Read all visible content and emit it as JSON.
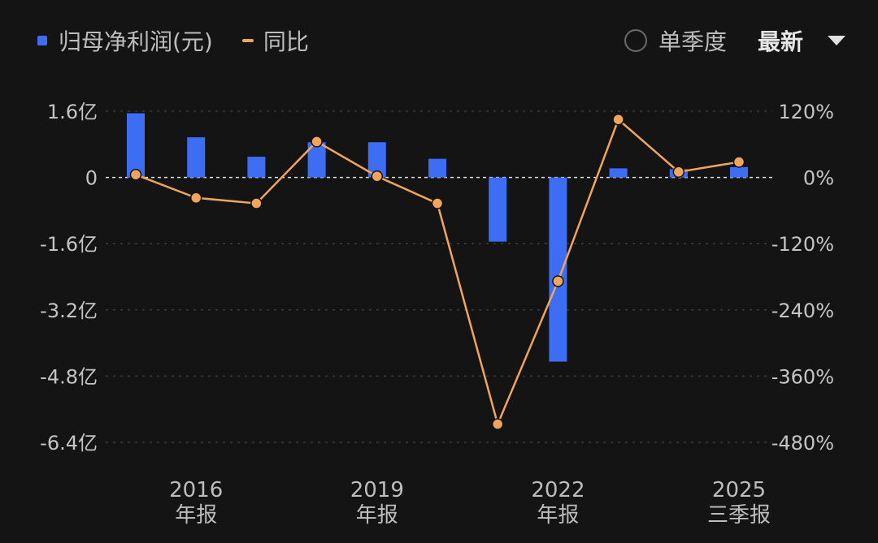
{
  "legend": {
    "bar_label": "归母净利润(元)",
    "line_label": "同比"
  },
  "controls": {
    "single_quarter_label": "单季度",
    "single_quarter_checked": false,
    "period_label": "最新"
  },
  "colors": {
    "bar": "#3d6df2",
    "line": "#f0a55a",
    "zero_line": "#e0e0e0",
    "grid": "#3a3a3a",
    "background": "#141414"
  },
  "chart_data": {
    "type": "bar+line",
    "left_axis": {
      "ticks": [
        "1.6亿",
        "0",
        "-1.6亿",
        "-3.2亿",
        "-4.8亿",
        "-6.4亿"
      ],
      "tick_values": [
        1.6,
        0,
        -1.6,
        -3.2,
        -4.8,
        -6.4
      ],
      "unit": "亿",
      "range": [
        -6.4,
        1.6
      ]
    },
    "right_axis": {
      "ticks": [
        "120%",
        "0%",
        "-120%",
        "-240%",
        "-360%",
        "-480%"
      ],
      "tick_values": [
        120,
        0,
        -120,
        -240,
        -360,
        -480
      ],
      "range": [
        -480,
        120
      ]
    },
    "x_labels": [
      {
        "index": 1,
        "year": "2016",
        "period": "年报"
      },
      {
        "index": 4,
        "year": "2019",
        "period": "年报"
      },
      {
        "index": 7,
        "year": "2022",
        "period": "年报"
      },
      {
        "index": 10,
        "year": "2025",
        "period": "三季报"
      }
    ],
    "series": [
      {
        "name": "归母净利润(元)",
        "type": "bar",
        "values": [
          1.55,
          0.97,
          0.5,
          0.85,
          0.85,
          0.45,
          -1.55,
          -4.45,
          0.22,
          0.2,
          0.25
        ]
      },
      {
        "name": "同比",
        "type": "line",
        "values": [
          5,
          -37,
          -47,
          65,
          2,
          -47,
          -447,
          -188,
          105,
          10,
          28
        ]
      }
    ],
    "grid": true
  }
}
